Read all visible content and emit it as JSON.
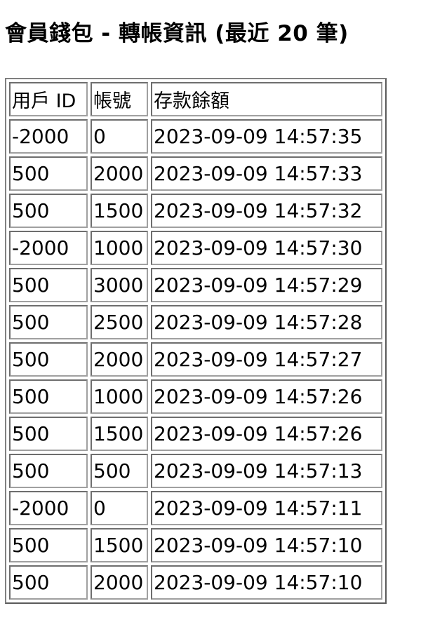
{
  "page": {
    "title": "會員錢包 - 轉帳資訊 (最近 20 筆)"
  },
  "table": {
    "headers": [
      "用戶 ID",
      "帳號",
      "存款餘額"
    ],
    "rows": [
      [
        "-2000",
        "0",
        "2023-09-09 14:57:35"
      ],
      [
        "500",
        "2000",
        "2023-09-09 14:57:33"
      ],
      [
        "500",
        "1500",
        "2023-09-09 14:57:32"
      ],
      [
        "-2000",
        "1000",
        "2023-09-09 14:57:30"
      ],
      [
        "500",
        "3000",
        "2023-09-09 14:57:29"
      ],
      [
        "500",
        "2500",
        "2023-09-09 14:57:28"
      ],
      [
        "500",
        "2000",
        "2023-09-09 14:57:27"
      ],
      [
        "500",
        "1000",
        "2023-09-09 14:57:26"
      ],
      [
        "500",
        "1500",
        "2023-09-09 14:57:26"
      ],
      [
        "500",
        "500",
        "2023-09-09 14:57:13"
      ],
      [
        "-2000",
        "0",
        "2023-09-09 14:57:11"
      ],
      [
        "500",
        "1500",
        "2023-09-09 14:57:10"
      ],
      [
        "500",
        "2000",
        "2023-09-09 14:57:10"
      ]
    ]
  }
}
